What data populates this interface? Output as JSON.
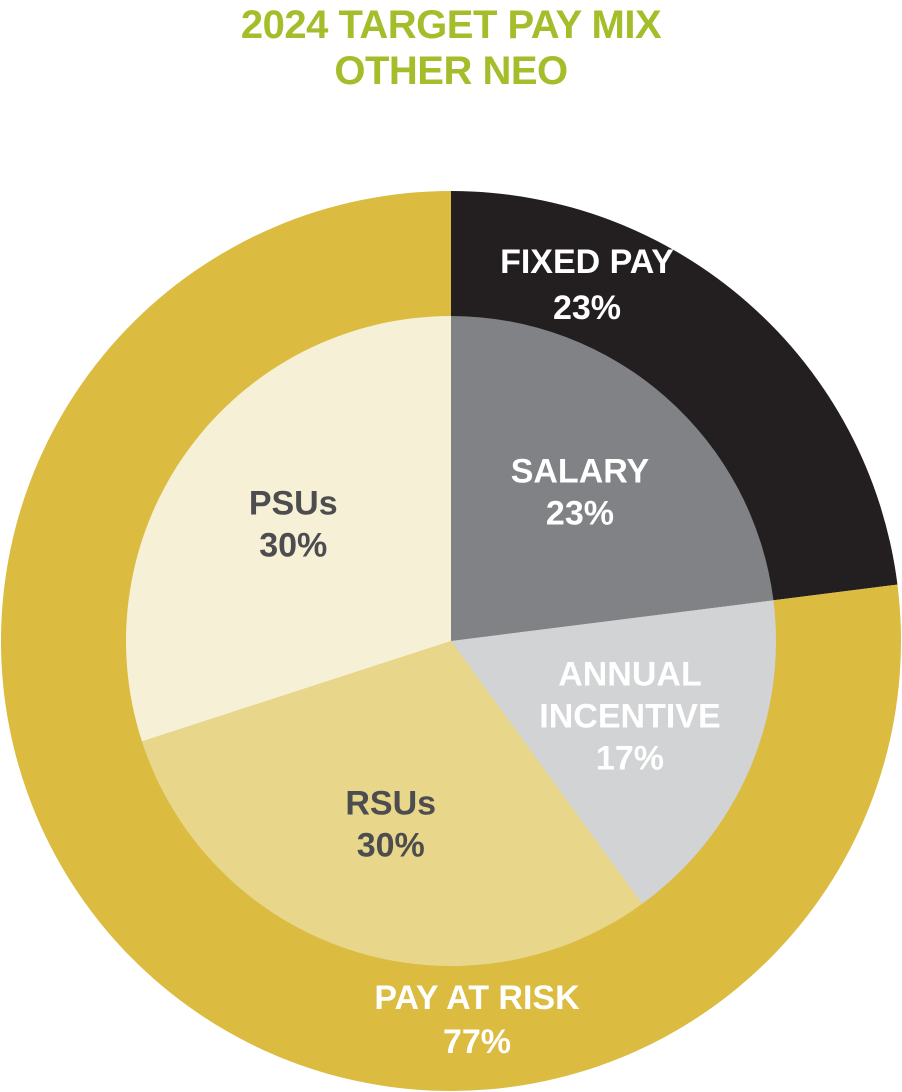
{
  "chart_data": {
    "type": "pie",
    "title": [
      "2024 TARGET PAY MIX",
      "OTHER NEO"
    ],
    "title_color": "#a4bd2a",
    "outer_ring": [
      {
        "label": "FIXED PAY",
        "value": 23,
        "display": "23%",
        "color": "#231f20",
        "text_color": "#ffffff"
      },
      {
        "label": "PAY AT RISK",
        "value": 77,
        "display": "77%",
        "color": "#dbbb40",
        "text_color": "#ffffff"
      }
    ],
    "inner_pie": [
      {
        "label": [
          "SALARY"
        ],
        "value": 23,
        "display": "23%",
        "color": "#808285",
        "text_color": "#ffffff"
      },
      {
        "label": [
          "ANNUAL",
          "INCENTIVE"
        ],
        "value": 17,
        "display": "17%",
        "color": "#d1d3d4",
        "text_color": "#ffffff"
      },
      {
        "label": [
          "RSUs"
        ],
        "value": 30,
        "display": "30%",
        "color": "#e8d68b",
        "text_color": "#4d4d4f"
      },
      {
        "label": [
          "PSUs"
        ],
        "value": 30,
        "display": "30%",
        "color": "#f6f0d7",
        "text_color": "#4d4d4f"
      }
    ]
  }
}
